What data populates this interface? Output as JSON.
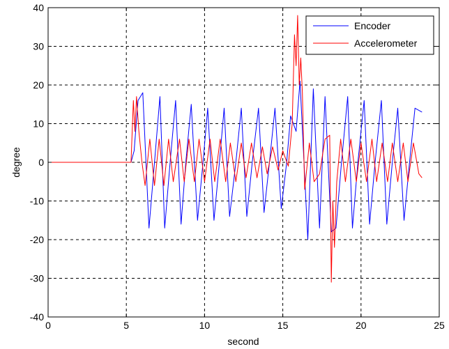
{
  "chart_data": {
    "type": "line",
    "xlabel": "second",
    "ylabel": "degree",
    "xlim": [
      0,
      25
    ],
    "ylim": [
      -40,
      40
    ],
    "xticks": [
      0,
      5,
      10,
      15,
      20,
      25
    ],
    "yticks": [
      -40,
      -30,
      -20,
      -10,
      0,
      10,
      20,
      30,
      40
    ],
    "grid": true,
    "legend_position": "top-right",
    "series": [
      {
        "name": "Encoder",
        "color": "#0000ff",
        "x": [
          0,
          1,
          2,
          3,
          4,
          5,
          5.3,
          5.5,
          5.75,
          6.05,
          6.45,
          6.8,
          7.15,
          7.45,
          7.8,
          8.15,
          8.5,
          8.8,
          9.15,
          9.55,
          9.9,
          10.2,
          10.6,
          10.95,
          11.25,
          11.6,
          12.0,
          12.35,
          12.7,
          13.05,
          13.45,
          13.8,
          14.15,
          14.5,
          14.9,
          15.25,
          15.5,
          15.85,
          16.1,
          16.6,
          16.95,
          17.35,
          17.7,
          18.1,
          18.4,
          18.75,
          19.15,
          19.45,
          19.8,
          20.2,
          20.55,
          20.9,
          21.3,
          21.65,
          22.0,
          22.35,
          22.75,
          23.1,
          23.45,
          23.9
        ],
        "y": [
          0,
          0,
          0,
          0,
          0,
          0,
          0,
          3,
          16,
          18,
          -17,
          0,
          17,
          -17,
          0,
          16,
          -16,
          0,
          15,
          -15,
          0,
          14,
          -15,
          0,
          14,
          -14,
          0,
          14,
          -14,
          0,
          14,
          -13,
          0,
          14,
          -12,
          0,
          12,
          8,
          21,
          -20,
          19,
          -17,
          17,
          -18,
          -17,
          0,
          17,
          -17,
          0,
          16,
          -16,
          0,
          16,
          -16,
          0,
          14,
          -15,
          0,
          14,
          13
        ]
      },
      {
        "name": "Accelerometer",
        "color": "#ff0000",
        "x": [
          0,
          1,
          2,
          3,
          4,
          5,
          5.3,
          5.45,
          5.55,
          5.65,
          5.8,
          6.0,
          6.2,
          6.5,
          6.8,
          7.1,
          7.4,
          7.7,
          8.0,
          8.4,
          8.7,
          9.0,
          9.35,
          9.65,
          10.0,
          10.35,
          10.65,
          11.0,
          11.35,
          11.65,
          12.0,
          12.35,
          12.65,
          13.0,
          13.35,
          13.7,
          14.0,
          14.35,
          14.7,
          15.0,
          15.35,
          15.6,
          15.75,
          15.85,
          15.95,
          16.05,
          16.15,
          16.25,
          16.4,
          16.7,
          17.0,
          17.35,
          17.7,
          18.0,
          18.1,
          18.2,
          18.3,
          18.45,
          18.7,
          19.0,
          19.35,
          19.7,
          20.0,
          20.35,
          20.7,
          21.0,
          21.35,
          21.7,
          22.0,
          22.35,
          22.7,
          23.0,
          23.35,
          23.7,
          23.9
        ],
        "y": [
          0,
          0,
          0,
          0,
          0,
          0,
          0,
          16,
          8,
          17,
          8,
          0,
          -6,
          6,
          -6,
          6,
          -6,
          6,
          -5,
          6,
          -5,
          6,
          -5,
          6,
          -5,
          6,
          -5,
          6,
          -5,
          5,
          -5,
          5,
          -4,
          5,
          -4,
          4,
          -3,
          4,
          -2,
          3,
          -1,
          10,
          33,
          25,
          38,
          20,
          27,
          18,
          -7,
          5,
          -5,
          -3,
          6,
          7,
          -31,
          -10,
          -22,
          -5,
          6,
          -5,
          6,
          -5,
          5,
          -5,
          6,
          -5,
          5,
          -5,
          5,
          -5,
          5,
          -5,
          5,
          -3,
          -4
        ]
      }
    ]
  }
}
